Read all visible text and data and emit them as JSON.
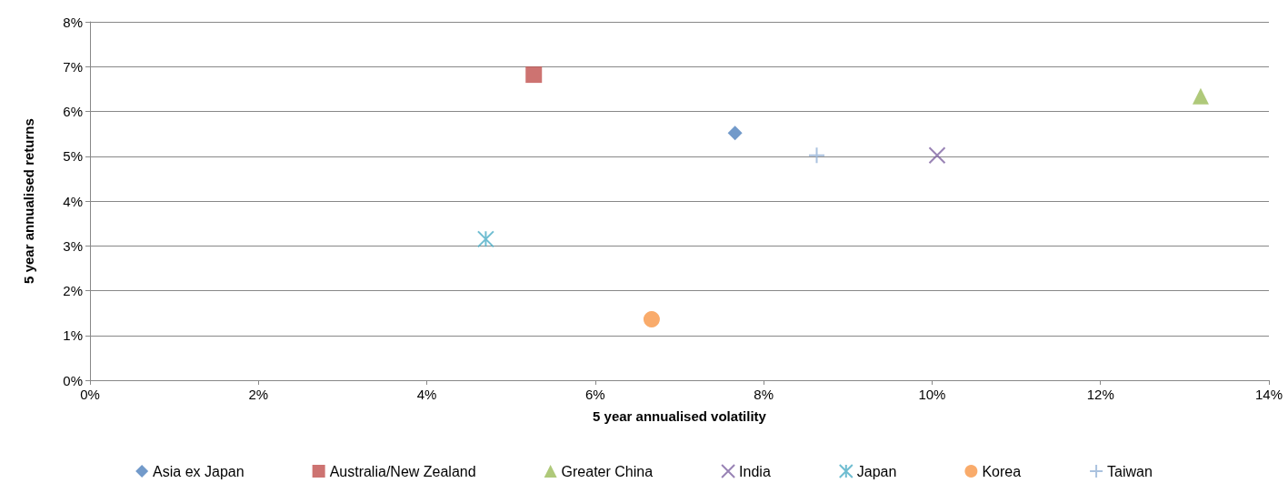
{
  "chart_data": {
    "type": "scatter",
    "xlabel": "5 year annualised volatility",
    "ylabel": "5 year annualised returns",
    "xlim": [
      0,
      14
    ],
    "xticks": [
      {
        "value": 0,
        "label": "0%"
      },
      {
        "value": 2,
        "label": "2%"
      },
      {
        "value": 4,
        "label": "4%"
      },
      {
        "value": 6,
        "label": "6%"
      },
      {
        "value": 8,
        "label": "8%"
      },
      {
        "value": 10,
        "label": "10%"
      },
      {
        "value": 12,
        "label": "12%"
      },
      {
        "value": 14,
        "label": "14%"
      }
    ],
    "ylim": [
      0,
      8
    ],
    "yticks": [
      {
        "value": 0,
        "label": "0%"
      },
      {
        "value": 1,
        "label": "1%"
      },
      {
        "value": 2,
        "label": "2%"
      },
      {
        "value": 3,
        "label": "3%"
      },
      {
        "value": 4,
        "label": "4%"
      },
      {
        "value": 5,
        "label": "5%"
      },
      {
        "value": 6,
        "label": "6%"
      },
      {
        "value": 7,
        "label": "7%"
      },
      {
        "value": 8,
        "label": "8%"
      }
    ],
    "grid": "y",
    "legend": "bottom",
    "series": [
      {
        "name": "Asia ex Japan",
        "color": "#4f81bd",
        "marker": "diamond",
        "x": [
          7.66
        ],
        "values": [
          5.52
        ]
      },
      {
        "name": "Australia/New Zealand",
        "color": "#c0504d",
        "marker": "square",
        "x": [
          5.27
        ],
        "values": [
          6.82
        ]
      },
      {
        "name": "Greater China",
        "color": "#9bbb59",
        "marker": "triangle",
        "x": [
          13.19
        ],
        "values": [
          6.34
        ]
      },
      {
        "name": "India",
        "color": "#8064a2",
        "marker": "x",
        "x": [
          10.06
        ],
        "values": [
          5.02
        ]
      },
      {
        "name": "Japan",
        "color": "#4bacc6",
        "marker": "cross",
        "x": [
          4.7
        ],
        "values": [
          3.15
        ]
      },
      {
        "name": "Korea",
        "color": "#f79646",
        "marker": "circle",
        "x": [
          6.67
        ],
        "values": [
          1.36
        ]
      },
      {
        "name": "Taiwan",
        "color": "#95b3d7",
        "marker": "plus",
        "x": [
          8.63
        ],
        "values": [
          5.02
        ]
      }
    ]
  }
}
